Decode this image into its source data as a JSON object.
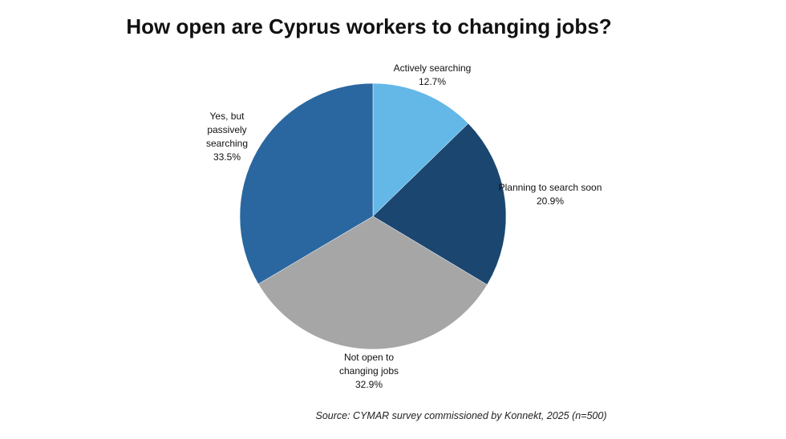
{
  "chart_data": {
    "type": "pie",
    "title": "How open are Cyprus workers to changing jobs?",
    "categories": [
      "Actively searching",
      "Planning to search soon",
      "Not open to changing jobs",
      "Yes, but passively searching"
    ],
    "values": [
      12.7,
      20.9,
      32.9,
      33.5
    ],
    "value_labels": [
      "12.7%",
      "20.9%",
      "32.9%",
      "33.5%"
    ],
    "colors": [
      "#63b8e8",
      "#1a4670",
      "#a6a6a6",
      "#2a67a0"
    ],
    "source": "Source: CYMAR survey commissioned by Konnekt, 2025 (n=500)"
  }
}
